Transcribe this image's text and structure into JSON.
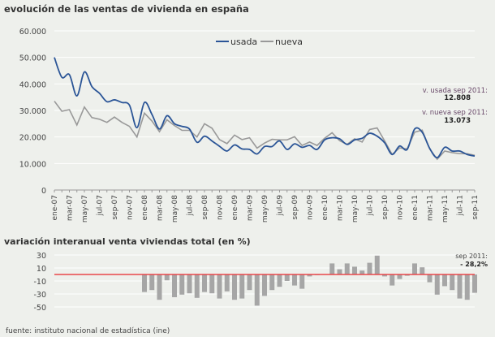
{
  "chart_data": [
    {
      "type": "line",
      "title": "evolución de las ventas de vivienda en españa",
      "xlabel": "",
      "ylabel": "",
      "ylim": [
        0,
        60000
      ],
      "yticks": [
        "0",
        "10.000",
        "20.000",
        "30.000",
        "40.000",
        "50.000",
        "60.000"
      ],
      "ytick_values": [
        0,
        10000,
        20000,
        30000,
        40000,
        50000,
        60000
      ],
      "grid": true,
      "legend": "top-center",
      "x": [
        "ene-07",
        "feb-07",
        "mar-07",
        "abr-07",
        "may-07",
        "jun-07",
        "jul-07",
        "ago-07",
        "sep-07",
        "oct-07",
        "nov-07",
        "dic-07",
        "ene-08",
        "feb-08",
        "mar-08",
        "abr-08",
        "may-08",
        "jun-08",
        "jul-08",
        "ago-08",
        "sep-08",
        "oct-08",
        "nov-08",
        "dic-08",
        "ene-09",
        "feb-09",
        "mar-09",
        "abr-09",
        "may-09",
        "jun-09",
        "jul-09",
        "ago-09",
        "sep-09",
        "oct-09",
        "nov-09",
        "dic-09",
        "ene-10",
        "feb-10",
        "mar-10",
        "abr-10",
        "may-10",
        "jun-10",
        "jul-10",
        "ago-10",
        "sep-10",
        "oct-10",
        "nov-10",
        "dic-10",
        "ene-11",
        "feb-11",
        "mar-11",
        "abr-11",
        "may-11",
        "jun-11",
        "jul-11",
        "ago-11",
        "sep-11"
      ],
      "series": [
        {
          "name": "usada",
          "color": "#2b5597",
          "values": [
            50000,
            42500,
            43500,
            35500,
            44500,
            39000,
            36500,
            33300,
            34000,
            33000,
            32000,
            23500,
            33000,
            28500,
            23000,
            28000,
            25000,
            24000,
            23000,
            18000,
            20300,
            18500,
            16500,
            14700,
            17000,
            15500,
            15300,
            13600,
            16400,
            16400,
            18500,
            15300,
            17400,
            16100,
            16800,
            15300,
            18900,
            19700,
            19300,
            17200,
            18900,
            19500,
            21400,
            20300,
            17800,
            13400,
            16600,
            15300,
            23000,
            21800,
            15700,
            12200,
            16100,
            14700,
            14700,
            13400,
            12808
          ]
        },
        {
          "name": "nueva",
          "color": "#999999",
          "values": [
            33500,
            29700,
            30300,
            24500,
            31300,
            27300,
            26700,
            25500,
            27500,
            25500,
            24000,
            20000,
            29000,
            26000,
            22000,
            26500,
            24300,
            22500,
            22500,
            20000,
            25000,
            23300,
            19000,
            17500,
            20700,
            19000,
            19700,
            15800,
            17700,
            19100,
            18900,
            18900,
            20100,
            16800,
            18100,
            16800,
            19500,
            21600,
            18600,
            17200,
            19300,
            18100,
            22800,
            23400,
            18500,
            13400,
            15900,
            15500,
            21800,
            22600,
            15500,
            11600,
            14700,
            14100,
            13700,
            13700,
            13073
          ]
        }
      ],
      "annotations": [
        {
          "label": "v. usada sep 2011:",
          "value": "12.808"
        },
        {
          "label": "v. nueva sep 2011:",
          "value": "13.073"
        }
      ]
    },
    {
      "type": "bar",
      "title": "variación interanual venta viviendas total (en %)",
      "ylim": [
        -50,
        30
      ],
      "yticks": [
        "30",
        "10",
        "-10",
        "-30",
        "-50"
      ],
      "ytick_values": [
        30,
        10,
        -10,
        -30,
        -50
      ],
      "grid": true,
      "bar_color": "#a6a6a6",
      "zero_line_color": "#e8474a",
      "categories_from": "ene-08 to sep-11",
      "values": [
        -27,
        -24,
        -39,
        -9,
        -35,
        -31,
        -29,
        -36,
        -27,
        -29,
        -37,
        -26,
        -39,
        -37,
        -24,
        -48,
        -33,
        -24,
        -19,
        -10,
        -17,
        -22,
        -3,
        -1,
        0,
        17,
        8,
        17,
        12,
        6,
        18,
        29,
        -3,
        -17,
        -7,
        -2,
        17,
        11,
        -12,
        -31,
        -18,
        -24,
        -37,
        -39,
        -28.2
      ],
      "annotation": {
        "label": "sep 2011:",
        "value": "- 28,2%"
      }
    }
  ],
  "footer": "fuente: instituto nacional de estadística (ine)"
}
